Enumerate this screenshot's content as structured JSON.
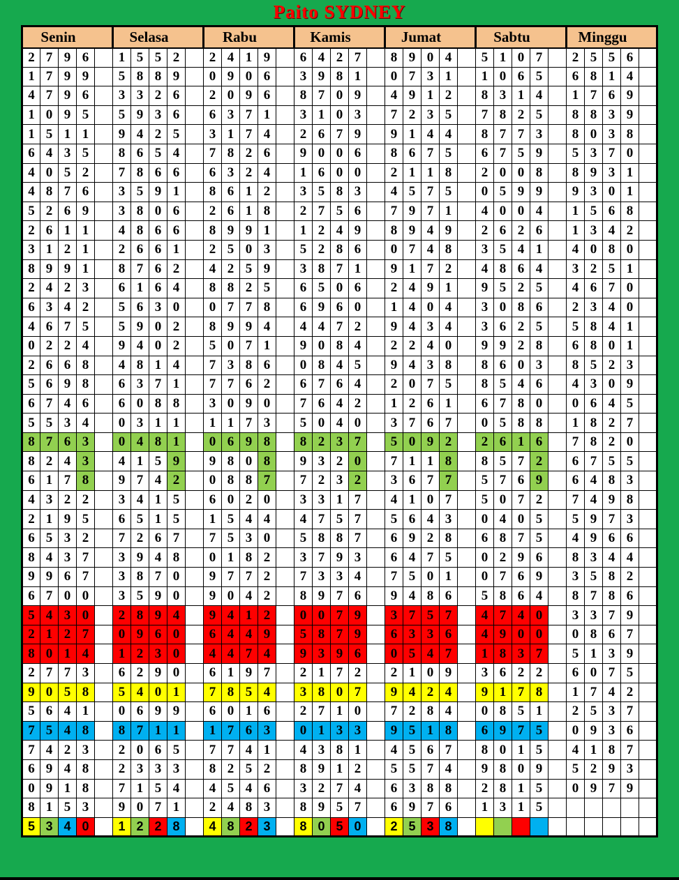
{
  "title": "Paito SYDNEY",
  "colors": {
    "page_background": "#16a94e",
    "header_background": "#f5c28e",
    "title_color": "#fe0000",
    "cell_background": "#ffffff",
    "border_color": "#000000",
    "highlight": {
      "green": "#92d050",
      "red": "#fe0000",
      "yellow": "#ffff00",
      "blue": "#00b0f0"
    }
  },
  "table": {
    "days": [
      "Senin",
      "Selasa",
      "Rabu",
      "Kamis",
      "Jumat",
      "Sabtu",
      "Minggu"
    ],
    "rows": [
      [
        "2796",
        "1552",
        "2419",
        "6427",
        "8904",
        "5107",
        "2556"
      ],
      [
        "1799",
        "5889",
        "0906",
        "3981",
        "0731",
        "1065",
        "6814"
      ],
      [
        "4796",
        "3326",
        "2096",
        "8709",
        "4912",
        "8314",
        "1769"
      ],
      [
        "1095",
        "5936",
        "6371",
        "3103",
        "7235",
        "7825",
        "8839"
      ],
      [
        "1511",
        "9425",
        "3174",
        "2679",
        "9144",
        "8773",
        "8038"
      ],
      [
        "6435",
        "8654",
        "7826",
        "9006",
        "8675",
        "6759",
        "5370"
      ],
      [
        "4052",
        "7866",
        "6324",
        "1600",
        "2118",
        "2008",
        "8931"
      ],
      [
        "4876",
        "3591",
        "8612",
        "3583",
        "4575",
        "0599",
        "9301"
      ],
      [
        "5269",
        "3806",
        "2618",
        "2756",
        "7971",
        "4004",
        "1568"
      ],
      [
        "2611",
        "4866",
        "8991",
        "1249",
        "8949",
        "2626",
        "1342"
      ],
      [
        "3121",
        "2661",
        "2503",
        "5286",
        "0748",
        "3541",
        "4080"
      ],
      [
        "8991",
        "8762",
        "4259",
        "3871",
        "9172",
        "4864",
        "3251"
      ],
      [
        "2423",
        "6164",
        "8825",
        "6506",
        "2491",
        "9525",
        "4670"
      ],
      [
        "6342",
        "5630",
        "0778",
        "6960",
        "1404",
        "3086",
        "2340"
      ],
      [
        "4675",
        "5902",
        "8994",
        "4472",
        "9434",
        "3625",
        "5841"
      ],
      [
        "0224",
        "9402",
        "5071",
        "9084",
        "2240",
        "9928",
        "6801"
      ],
      [
        "2668",
        "4814",
        "7386",
        "0845",
        "9438",
        "8603",
        "8523"
      ],
      [
        "5698",
        "6371",
        "7762",
        "6764",
        "2075",
        "8546",
        "4309"
      ],
      [
        "6746",
        "6088",
        "3090",
        "7642",
        "1261",
        "6780",
        "0645"
      ],
      [
        "5534",
        "0311",
        "1173",
        "5040",
        "3767",
        "0588",
        "1827"
      ],
      [
        "8763",
        "0481",
        "0698",
        "8237",
        "5092",
        "2616",
        "7820"
      ],
      [
        "8243",
        "4159",
        "9808",
        "9320",
        "7118",
        "8572",
        "6755"
      ],
      [
        "6178",
        "9742",
        "0887",
        "7232",
        "3677",
        "5769",
        "6483"
      ],
      [
        "4322",
        "3415",
        "6020",
        "3317",
        "4107",
        "5072",
        "7498"
      ],
      [
        "2195",
        "6515",
        "1544",
        "4757",
        "5643",
        "0405",
        "5973"
      ],
      [
        "6532",
        "7267",
        "7530",
        "5887",
        "6928",
        "6875",
        "4966"
      ],
      [
        "8437",
        "3948",
        "0182",
        "3793",
        "6475",
        "0296",
        "8344"
      ],
      [
        "9967",
        "3870",
        "9772",
        "7334",
        "7501",
        "0769",
        "3582"
      ],
      [
        "6700",
        "3590",
        "9042",
        "8976",
        "9486",
        "5864",
        "8786"
      ],
      [
        "5430",
        "2894",
        "9412",
        "0079",
        "3757",
        "4740",
        "3379"
      ],
      [
        "2127",
        "0960",
        "6449",
        "5879",
        "6336",
        "4900",
        "0867"
      ],
      [
        "8014",
        "1230",
        "4474",
        "9396",
        "0547",
        "1837",
        "5139"
      ],
      [
        "2773",
        "6290",
        "6197",
        "2172",
        "2109",
        "3622",
        "6075"
      ],
      [
        "9058",
        "5401",
        "7854",
        "3807",
        "9424",
        "9178",
        "1742"
      ],
      [
        "5641",
        "0699",
        "6016",
        "2710",
        "7284",
        "0851",
        "2537"
      ],
      [
        "7548",
        "8711",
        "1763",
        "0133",
        "9518",
        "6975",
        "0936"
      ],
      [
        "7423",
        "2065",
        "7741",
        "4381",
        "4567",
        "8015",
        "4187"
      ],
      [
        "6948",
        "2333",
        "8252",
        "8912",
        "5574",
        "9809",
        "5293"
      ],
      [
        "0918",
        "7154",
        "4546",
        "3274",
        "6388",
        "2815",
        "0979"
      ],
      [
        "8153",
        "9071",
        "2483",
        "8957",
        "6976",
        "1315",
        ""
      ],
      [
        "5340",
        "1228",
        "4823",
        "8050",
        "2538",
        "",
        ""
      ]
    ],
    "highlights": {
      "21": {
        "mode": "all",
        "color": "green",
        "days": [
          0,
          1,
          2,
          3,
          4,
          5
        ]
      },
      "22": {
        "mode": "last",
        "color": "green",
        "days": [
          0,
          1,
          2,
          3,
          4,
          5
        ]
      },
      "23": {
        "mode": "last",
        "color": "green",
        "days": [
          0,
          1,
          2,
          3,
          4,
          5
        ]
      },
      "30": {
        "mode": "all",
        "color": "red",
        "days": [
          0,
          1,
          2,
          3,
          4,
          5
        ]
      },
      "31": {
        "mode": "all",
        "color": "red",
        "days": [
          0,
          1,
          2,
          3,
          4,
          5
        ]
      },
      "32": {
        "mode": "all",
        "color": "red",
        "days": [
          0,
          1,
          2,
          3,
          4,
          5
        ]
      },
      "34": {
        "mode": "all",
        "color": "yellow",
        "days": [
          0,
          1,
          2,
          3,
          4,
          5
        ]
      },
      "36": {
        "mode": "all",
        "color": "blue",
        "days": [
          0,
          1,
          2,
          3,
          4,
          5
        ]
      },
      "41": {
        "mode": "custom",
        "font": "sans",
        "map": [
          [
            "yellow",
            "green",
            "blue",
            "red"
          ],
          [
            "yellow",
            "green",
            "red",
            "blue"
          ],
          [
            "yellow",
            "green",
            "red",
            "blue"
          ],
          [
            "yellow",
            "green",
            "red",
            "blue"
          ],
          [
            "yellow",
            "green",
            "red",
            "blue"
          ],
          [
            "yellow",
            "green",
            "red",
            "blue"
          ],
          [
            "",
            "",
            "",
            ""
          ]
        ]
      }
    }
  }
}
